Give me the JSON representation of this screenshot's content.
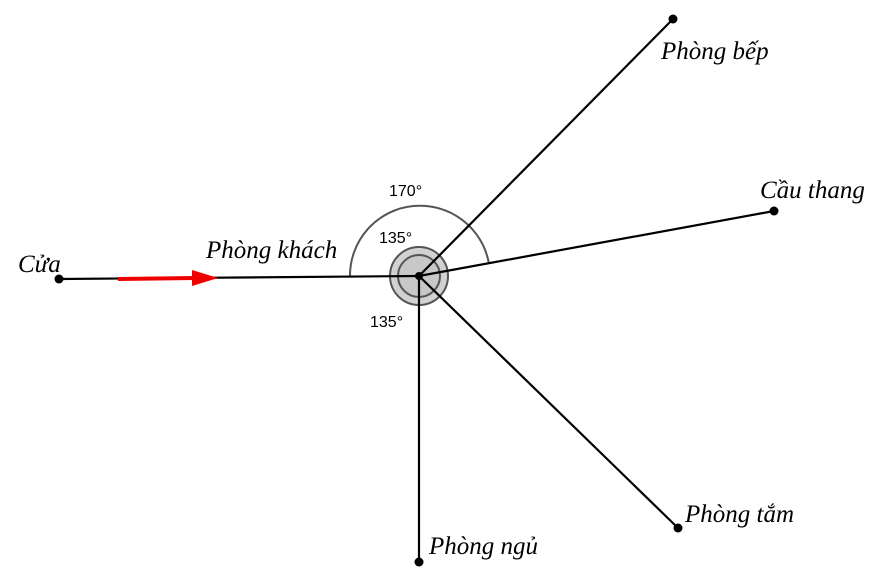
{
  "rooms": {
    "door": "Cửa",
    "living_room": "Phòng khách",
    "kitchen": "Phòng bếp",
    "stairs": "Cầu thang",
    "bathroom": "Phòng tắm",
    "bedroom": "Phòng ngủ"
  },
  "angles": {
    "large": "170°",
    "inner": "135°",
    "lower": "135°"
  },
  "colors": {
    "line": "#000000",
    "arrow": "#ee0000",
    "hub_fill": "#cccccc",
    "arc": "#555555"
  }
}
